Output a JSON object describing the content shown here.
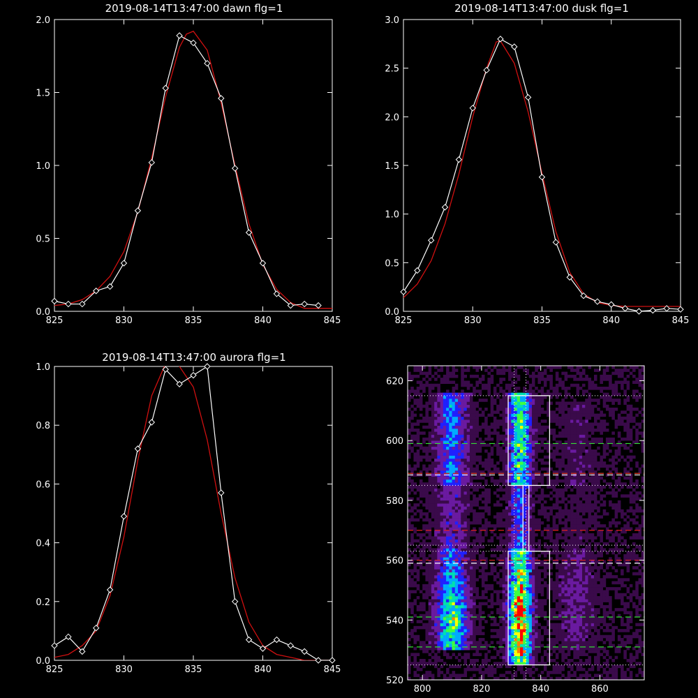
{
  "colors": {
    "background": "#000000",
    "axes": "#ffffff",
    "measured": "#ffffff",
    "fit": "#d01010",
    "green_dash": "#33dd33",
    "red_dash": "#e02020",
    "box": "#ffffff"
  },
  "chart_data": [
    {
      "type": "line",
      "title": "2019-08-14T13:47:00 dawn flg=1",
      "xlim": [
        825,
        845
      ],
      "ylim": [
        0,
        2.0
      ],
      "xticks": [
        "825",
        "830",
        "835",
        "840",
        "845"
      ],
      "yticks": [
        "0.0",
        "0.5",
        "1.0",
        "1.5",
        "2.0"
      ],
      "grid": false,
      "series": [
        {
          "style": "white line with diamond markers",
          "x": [
            825,
            826,
            827,
            828,
            829,
            830,
            831,
            832,
            833,
            834,
            835,
            836,
            837,
            838,
            839,
            840,
            841,
            842,
            843,
            844
          ],
          "y": [
            0.07,
            0.05,
            0.05,
            0.14,
            0.17,
            0.33,
            0.69,
            1.02,
            1.53,
            1.89,
            1.84,
            1.7,
            1.46,
            0.98,
            0.54,
            0.33,
            0.12,
            0.04,
            0.05,
            0.04
          ]
        },
        {
          "style": "red smooth fit",
          "x": [
            825,
            826,
            827,
            828,
            829,
            830,
            831,
            832,
            833,
            834,
            834.5,
            835,
            836,
            837,
            838,
            839,
            840,
            841,
            842,
            843,
            844,
            845
          ],
          "y": [
            0.04,
            0.05,
            0.08,
            0.14,
            0.24,
            0.41,
            0.68,
            1.05,
            1.47,
            1.81,
            1.9,
            1.92,
            1.79,
            1.43,
            1.0,
            0.6,
            0.32,
            0.15,
            0.06,
            0.02,
            0.02,
            0.02
          ]
        }
      ]
    },
    {
      "type": "line",
      "title": "2019-08-14T13:47:00 dusk flg=1",
      "xlim": [
        825,
        845
      ],
      "ylim": [
        0,
        3.0
      ],
      "xticks": [
        "825",
        "830",
        "835",
        "840",
        "845"
      ],
      "yticks": [
        "0.0",
        "0.5",
        "1.0",
        "1.5",
        "2.0",
        "2.5",
        "3.0"
      ],
      "grid": false,
      "series": [
        {
          "style": "white line with diamond markers",
          "x": [
            825,
            826,
            827,
            828,
            829,
            830,
            831,
            832,
            833,
            834,
            835,
            836,
            837,
            838,
            839,
            840,
            841,
            842,
            843,
            844,
            845
          ],
          "y": [
            0.2,
            0.42,
            0.73,
            1.07,
            1.56,
            2.09,
            2.48,
            2.8,
            2.72,
            2.2,
            1.38,
            0.71,
            0.35,
            0.16,
            0.1,
            0.07,
            0.03,
            0.0,
            0.01,
            0.03,
            0.02
          ]
        },
        {
          "style": "red smooth fit",
          "x": [
            825,
            826,
            827,
            828,
            829,
            830,
            831,
            831.7,
            832,
            833,
            834,
            835,
            836,
            837,
            838,
            839,
            840,
            841,
            842,
            843,
            844,
            845
          ],
          "y": [
            0.14,
            0.28,
            0.52,
            0.9,
            1.41,
            2.0,
            2.5,
            2.77,
            2.78,
            2.55,
            2.05,
            1.42,
            0.82,
            0.4,
            0.18,
            0.09,
            0.06,
            0.05,
            0.05,
            0.05,
            0.05,
            0.05
          ]
        }
      ]
    },
    {
      "type": "line",
      "title": "2019-08-14T13:47:00 aurora flg=1",
      "xlim": [
        825,
        845
      ],
      "ylim": [
        0,
        1.0
      ],
      "xticks": [
        "825",
        "830",
        "835",
        "840",
        "845"
      ],
      "yticks": [
        "0.0",
        "0.2",
        "0.4",
        "0.6",
        "0.8",
        "1.0"
      ],
      "grid": false,
      "series": [
        {
          "style": "white line with diamond markers",
          "x": [
            825,
            826,
            827,
            828,
            829,
            830,
            831,
            832,
            833,
            834,
            835,
            836,
            837,
            838,
            839,
            840,
            841,
            842,
            843,
            844,
            845
          ],
          "y": [
            0.05,
            0.08,
            0.03,
            0.11,
            0.24,
            0.49,
            0.72,
            0.81,
            0.99,
            0.94,
            0.97,
            1.0,
            0.57,
            0.2,
            0.07,
            0.04,
            0.07,
            0.05,
            0.03,
            0.0,
            0.0
          ]
        },
        {
          "style": "red smooth fit",
          "x": [
            825,
            826,
            827,
            828,
            829,
            830,
            831,
            832,
            833,
            833.5,
            834,
            835,
            836,
            837,
            838,
            839,
            840,
            841,
            842,
            843,
            844,
            845
          ],
          "y": [
            0.01,
            0.02,
            0.05,
            0.1,
            0.22,
            0.42,
            0.68,
            0.9,
            1.01,
            1.02,
            1.0,
            0.93,
            0.75,
            0.5,
            0.28,
            0.13,
            0.05,
            0.02,
            0.01,
            0.0,
            0.0,
            0.0
          ]
        }
      ]
    },
    {
      "type": "heatmap",
      "xlim": [
        795,
        875
      ],
      "ylim": [
        520,
        625
      ],
      "xticks": [
        "800",
        "820",
        "840",
        "860"
      ],
      "yticks": [
        "520",
        "540",
        "560",
        "580",
        "600",
        "620"
      ],
      "colormap": [
        "#000000",
        "#3a0a4a",
        "#6a1aa0",
        "#2020ff",
        "#00aaff",
        "#00e0b0",
        "#40ff40",
        "#ffff00",
        "#ff8000",
        "#ff0000"
      ],
      "emission_bands": [
        {
          "x_center": 810,
          "x_width": 5,
          "y_from": 530,
          "y_to": 615,
          "peak_y": 540,
          "peak_value": 0.6
        },
        {
          "x_center": 833,
          "x_width": 3.5,
          "y_from": 525,
          "y_to": 615,
          "peak_y": 540,
          "peak_value": 1.0
        },
        {
          "x_center": 852,
          "x_width": 6,
          "y_from": 530,
          "y_to": 612,
          "peak_y": 545,
          "peak_value": 0.15
        }
      ],
      "boxes": [
        {
          "x": [
            829,
            843
          ],
          "y": [
            585,
            615
          ]
        },
        {
          "x": [
            829,
            843
          ],
          "y": [
            525,
            563
          ]
        },
        {
          "x": [
            834,
            836
          ],
          "y": [
            563,
            585
          ]
        }
      ],
      "green_dashed_lines_y": [
        599,
        589,
        541,
        531
      ],
      "red_dashed_lines_y": [
        589,
        570,
        560
      ],
      "white_dashed_lines_y": [
        588.5,
        559
      ],
      "dotted_horizontal_lines_y": [
        615,
        585,
        563,
        525,
        565
      ],
      "dotted_vertical_lines_x": [
        831,
        835
      ]
    }
  ]
}
